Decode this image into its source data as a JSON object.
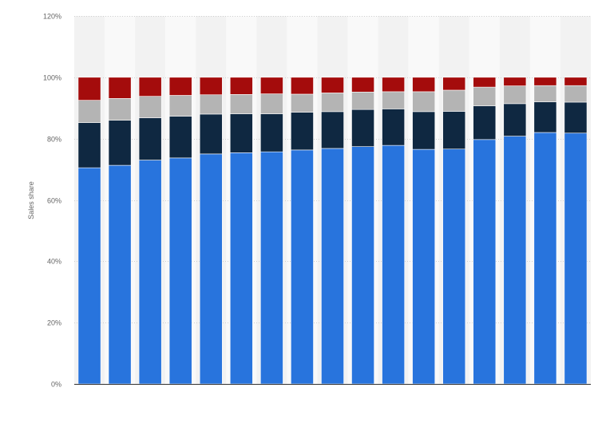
{
  "chart_data": {
    "type": "bar",
    "stacked": true,
    "xlabel": "",
    "ylabel": "Sales share",
    "ylim": [
      0,
      1.2
    ],
    "y_tick_format": "percent",
    "yticks": [
      {
        "value": 0,
        "label": "0%"
      },
      {
        "value": 0.2,
        "label": "20%"
      },
      {
        "value": 0.4,
        "label": "40%"
      },
      {
        "value": 0.6,
        "label": "60%"
      },
      {
        "value": 0.8,
        "label": "80%"
      },
      {
        "value": 1.0,
        "label": "100%"
      },
      {
        "value": 1.2,
        "label": "120%"
      }
    ],
    "grid": true,
    "legend": "none",
    "bar_count": 17,
    "series": [
      {
        "color": "#2874dd",
        "values": [
          0.705,
          0.713,
          0.73,
          0.737,
          0.75,
          0.754,
          0.757,
          0.763,
          0.768,
          0.774,
          0.778,
          0.765,
          0.766,
          0.797,
          0.808,
          0.82,
          0.818
        ]
      },
      {
        "color": "#0f2841",
        "values": [
          0.147,
          0.147,
          0.138,
          0.136,
          0.13,
          0.127,
          0.124,
          0.123,
          0.12,
          0.121,
          0.119,
          0.123,
          0.123,
          0.11,
          0.106,
          0.1,
          0.101
        ]
      },
      {
        "color": "#b4b4b4",
        "values": [
          0.073,
          0.071,
          0.07,
          0.068,
          0.063,
          0.063,
          0.065,
          0.059,
          0.061,
          0.057,
          0.056,
          0.065,
          0.069,
          0.061,
          0.058,
          0.053,
          0.054
        ]
      },
      {
        "color": "#a40c0c",
        "values": [
          0.075,
          0.069,
          0.062,
          0.059,
          0.057,
          0.056,
          0.054,
          0.055,
          0.051,
          0.048,
          0.047,
          0.047,
          0.042,
          0.032,
          0.028,
          0.027,
          0.027
        ]
      }
    ]
  }
}
